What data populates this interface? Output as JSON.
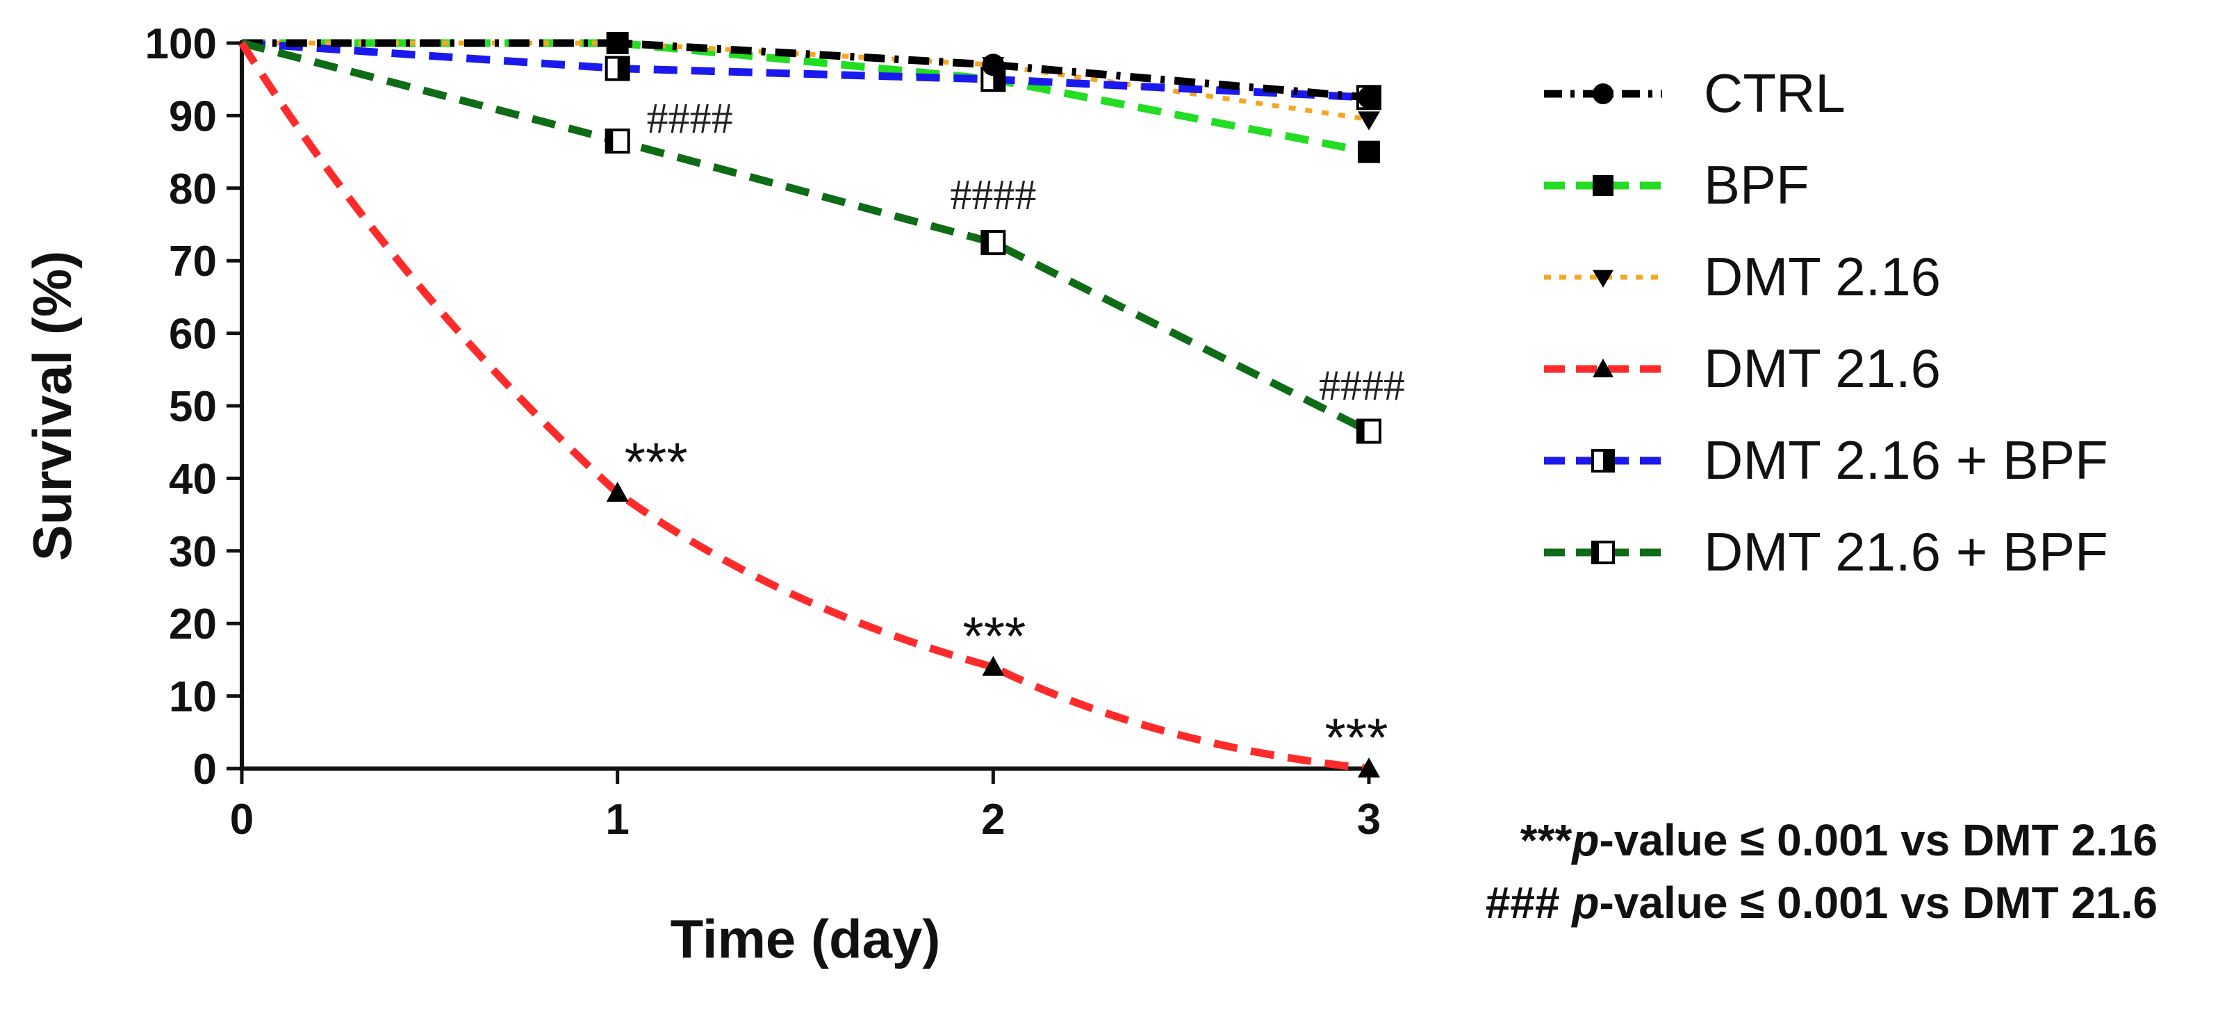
{
  "chart_data": {
    "type": "line",
    "xlabel": "Time (day)",
    "ylabel": "Survival (%)",
    "x": [
      0,
      1,
      2,
      3
    ],
    "xlim": [
      0,
      3
    ],
    "ylim": [
      0,
      100
    ],
    "xticks": [
      "0",
      "1",
      "2",
      "3"
    ],
    "yticks": [
      "0",
      "10",
      "20",
      "30",
      "40",
      "50",
      "60",
      "70",
      "80",
      "90",
      "100"
    ],
    "grid": false,
    "legend_position": "right",
    "series": [
      {
        "name": "CTRL",
        "values": [
          100,
          100,
          97,
          92.5
        ],
        "color": "#000000",
        "dash": "dashdot",
        "marker": "circle"
      },
      {
        "name": "BPF",
        "values": [
          100,
          100,
          95,
          85
        ],
        "color": "#22dd22",
        "dash": "dash",
        "marker": "square"
      },
      {
        "name": "DMT 2.16",
        "values": [
          100,
          100,
          97,
          89.5
        ],
        "color": "#f5a623",
        "dash": "dot",
        "marker": "triangle-down"
      },
      {
        "name": "DMT 21.6",
        "values": [
          100,
          38,
          14,
          0
        ],
        "color": "#ff2b2b",
        "dash": "dash",
        "marker": "triangle-up"
      },
      {
        "name": "DMT 2.16 + BPF",
        "values": [
          100,
          96.5,
          95,
          92.5
        ],
        "color": "#1a1aee",
        "dash": "dash",
        "marker": "half-square"
      },
      {
        "name": "DMT 21.6 + BPF",
        "values": [
          100,
          86.5,
          72.5,
          46.5
        ],
        "color": "#0e6b16",
        "dash": "dash",
        "marker": "half-square-open"
      }
    ],
    "annotations": [
      {
        "text": "***",
        "x": 1,
        "y": 38,
        "series": "DMT 21.6"
      },
      {
        "text": "***",
        "x": 2,
        "y": 14,
        "series": "DMT 21.6"
      },
      {
        "text": "***",
        "x": 3,
        "y": 0,
        "series": "DMT 21.6"
      },
      {
        "text": "####",
        "x": 1,
        "y": 86.5,
        "series": "DMT 21.6 + BPF"
      },
      {
        "text": "####",
        "x": 2,
        "y": 72.5,
        "series": "DMT 21.6 + BPF"
      },
      {
        "text": "####",
        "x": 3,
        "y": 46.5,
        "series": "DMT 21.6 + BPF"
      }
    ]
  },
  "footnotes": {
    "line1": {
      "prefix": "***",
      "p": "p",
      "rest": "-value ≤ 0.001 vs DMT 2.16"
    },
    "line2": {
      "prefix": "### ",
      "p": "p",
      "rest": "-value ≤ 0.001 vs DMT 21.6"
    }
  }
}
